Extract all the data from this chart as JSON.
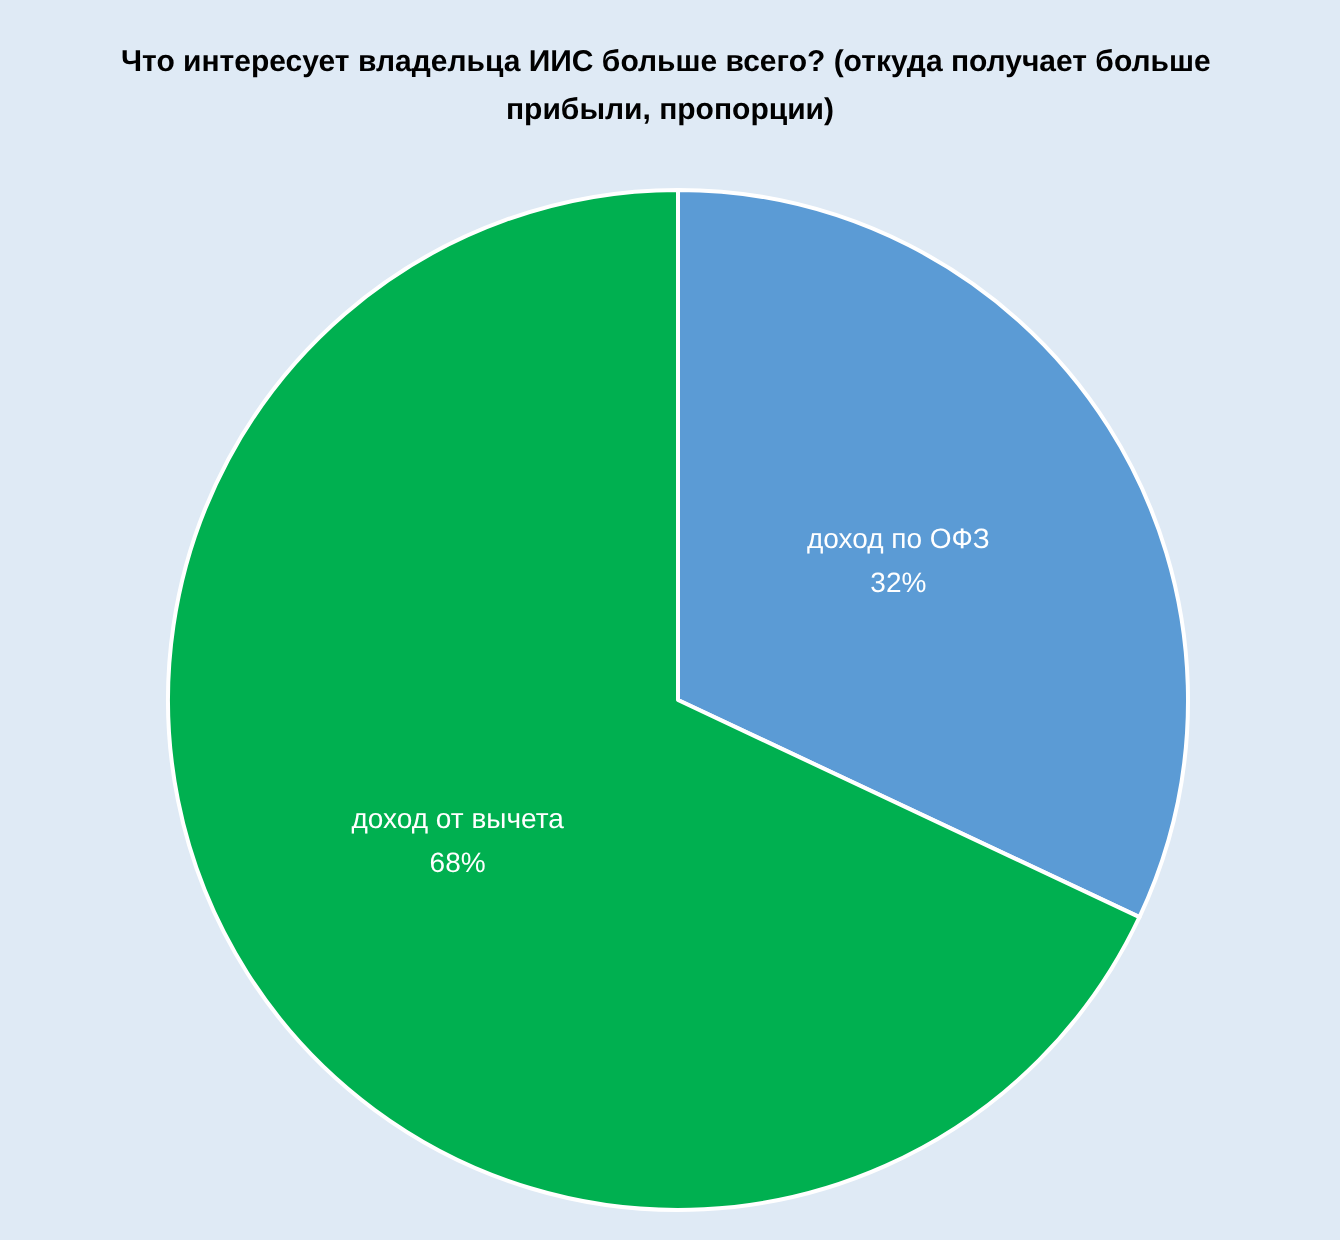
{
  "chart_data": {
    "type": "pie",
    "title": "Что интересует владельца ИИС больше всего? (откуда получает больше прибыли, пропорции)",
    "categories": [
      "доход по ОФЗ",
      "доход от вычета"
    ],
    "values": [
      32,
      68
    ],
    "colors": [
      "#5b9bd5",
      "#00b050"
    ],
    "value_labels": [
      "32%",
      "68%"
    ],
    "legend": false
  }
}
